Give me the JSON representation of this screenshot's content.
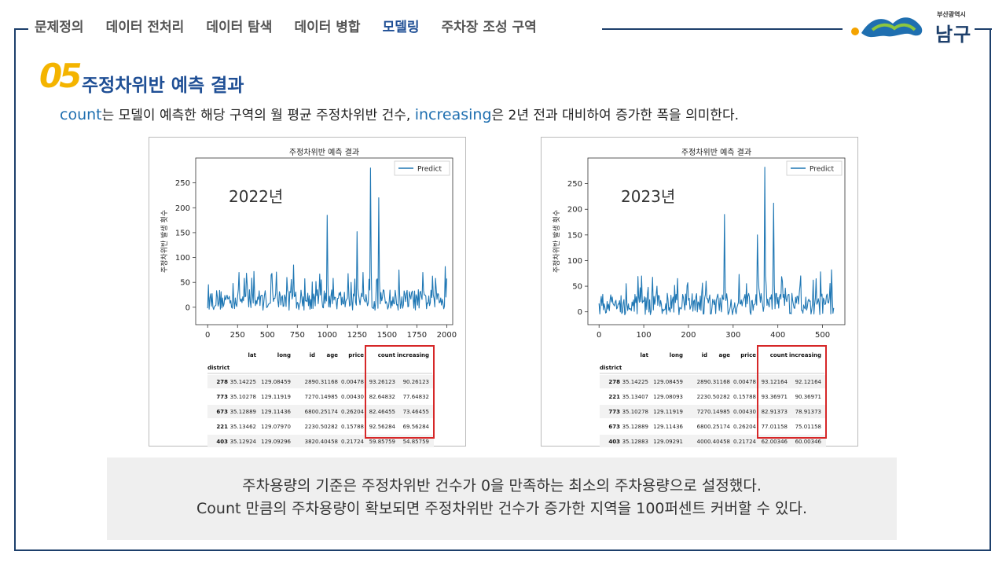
{
  "nav": {
    "items": [
      "문제정의",
      "데이터 전처리",
      "데이터 탐색",
      "데이터 병합",
      "모델링",
      "주차장 조성 구역"
    ],
    "active_index": 4
  },
  "logo": {
    "small": "부산광역시",
    "big": "남구"
  },
  "section": {
    "number": "05",
    "title": "주정차위반 예측 결과"
  },
  "description": {
    "kw1": "count",
    "part1": "는 모델이 예측한 해당 구역의 월 평균 주정차위반  건수, ",
    "kw2": "increasing",
    "part2": "은 2년 전과 대비하여 증가한 폭을 의미한다."
  },
  "colors": {
    "accent": "#1f4f95",
    "line": "#1f77b4",
    "highlight": "#d62728",
    "number": "#f4b400"
  },
  "chart_data": [
    {
      "type": "line",
      "title": "주정차위반 예측 결과",
      "ylabel": "주정차위반 발생 횟수",
      "annotation": "2022년",
      "legend": "Predict",
      "legend_position": "top-right",
      "xlim": [
        -100,
        2050
      ],
      "ylim": [
        -35,
        300
      ],
      "xticks": [
        0,
        250,
        500,
        750,
        1000,
        1250,
        1500,
        1750,
        2000
      ],
      "yticks": [
        0,
        50,
        100,
        150,
        200,
        250
      ],
      "series": [
        {
          "name": "Predict",
          "x_max": 2000,
          "peaks": [
            [
              210,
              48
            ],
            [
              260,
              70
            ],
            [
              330,
              45
            ],
            [
              530,
              65
            ],
            [
              660,
              60
            ],
            [
              720,
              85
            ],
            [
              1000,
              185
            ],
            [
              1050,
              58
            ],
            [
              1200,
              50
            ],
            [
              1250,
              152
            ],
            [
              1300,
              70
            ],
            [
              1360,
              280
            ],
            [
              1430,
              220
            ],
            [
              1600,
              75
            ],
            [
              1800,
              70
            ],
            [
              1990,
              82
            ]
          ]
        }
      ],
      "table": {
        "columns": [
          "lat",
          "long",
          "id",
          "age",
          "price",
          "count",
          "increasing"
        ],
        "index_name": "district",
        "rows": [
          [
            "278",
            "35.14225",
            "129.08459",
            "289",
            "0.31168",
            "0.00478",
            "93.26123",
            "90.26123"
          ],
          [
            "773",
            "35.10278",
            "129.11919",
            "727",
            "0.14985",
            "0.00430",
            "82.64832",
            "77.64832"
          ],
          [
            "673",
            "35.12889",
            "129.11436",
            "680",
            "0.25174",
            "0.26204",
            "82.46455",
            "73.46455"
          ],
          [
            "221",
            "35.13462",
            "129.07970",
            "223",
            "0.50282",
            "0.15788",
            "92.56284",
            "69.56284"
          ],
          [
            "403",
            "35.12924",
            "129.09296",
            "382",
            "0.40458",
            "0.21724",
            "59.85759",
            "54.85759"
          ]
        ]
      }
    },
    {
      "type": "line",
      "title": "주정차위반 예측 결과",
      "ylabel": "주정차위반 발생 횟수",
      "annotation": "2023년",
      "legend": "Predict",
      "legend_position": "top-right",
      "xlim": [
        -25,
        550
      ],
      "ylim": [
        -25,
        300
      ],
      "xticks": [
        0,
        100,
        200,
        300,
        400,
        500
      ],
      "yticks": [
        0,
        50,
        100,
        150,
        200,
        250
      ],
      "series": [
        {
          "name": "Predict",
          "x_max": 525,
          "peaks": [
            [
              60,
              55
            ],
            [
              95,
              70
            ],
            [
              130,
              50
            ],
            [
              175,
              65
            ],
            [
              240,
              60
            ],
            [
              280,
              190
            ],
            [
              330,
              55
            ],
            [
              355,
              150
            ],
            [
              370,
              282
            ],
            [
              390,
              212
            ],
            [
              410,
              60
            ],
            [
              450,
              52
            ],
            [
              495,
              78
            ],
            [
              520,
              82
            ]
          ]
        }
      ],
      "table": {
        "columns": [
          "lat",
          "long",
          "id",
          "age",
          "price",
          "count",
          "increasing"
        ],
        "index_name": "district",
        "rows": [
          [
            "278",
            "35.14225",
            "129.08459",
            "289",
            "0.31168",
            "0.00478",
            "93.12164",
            "92.12164"
          ],
          [
            "221",
            "35.13407",
            "129.08093",
            "223",
            "0.50282",
            "0.15788",
            "93.36971",
            "90.36971"
          ],
          [
            "773",
            "35.10278",
            "129.11919",
            "727",
            "0.14985",
            "0.00430",
            "82.91373",
            "78.91373"
          ],
          [
            "673",
            "35.12889",
            "129.11436",
            "680",
            "0.25174",
            "0.26204",
            "77.01158",
            "75.01158"
          ],
          [
            "403",
            "35.12883",
            "129.09291",
            "400",
            "0.40458",
            "0.21724",
            "62.00346",
            "60.00346"
          ]
        ]
      }
    }
  ],
  "callout": {
    "line1": "주차용량의 기준은 주정차위반 건수가 0을 만족하는 최소의 주차용량으로 설정했다.",
    "line2": "Count 만큼의 주차용량이 확보되면 주정차위반 건수가 증가한 지역을 100퍼센트 커버할 수 있다."
  }
}
